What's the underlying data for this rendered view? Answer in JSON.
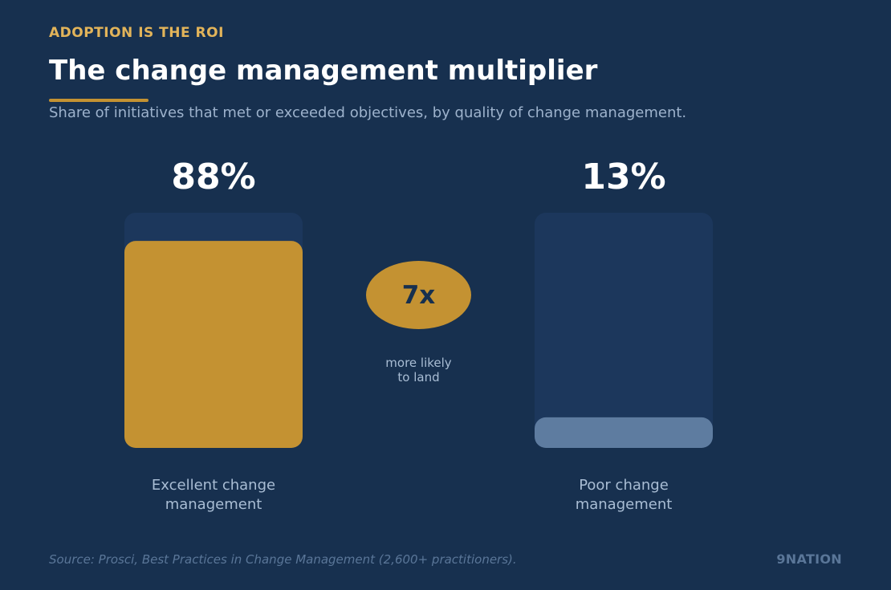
{
  "header": {
    "eyebrow": "ADOPTION IS THE ROI",
    "title": "The change management multiplier",
    "subtitle": "Share of initiatives that met or exceeded objectives, by quality of change management."
  },
  "chart_data": {
    "type": "bar",
    "title": "The change management multiplier",
    "subtitle": "Share of initiatives that met or exceeded objectives, by quality of change management.",
    "categories": [
      "Excellent change\nmanagement",
      "Poor change\nmanagement"
    ],
    "values": [
      88,
      13
    ],
    "value_labels": [
      "88%",
      "13%"
    ],
    "unit": "%",
    "ylim": [
      0,
      100
    ],
    "grid": false,
    "legend": "none",
    "colors": {
      "track": "#1c375c",
      "excellent": "#c49232",
      "poor": "#5e7ca0"
    },
    "annotation": {
      "value": "7x",
      "caption": "more likely\nto land"
    }
  },
  "footer": {
    "source": "Source: Prosci, Best Practices in Change Management (2,600+ practitioners).",
    "brand": "9NATION"
  },
  "colors": {
    "background": "#17304f",
    "accent": "#c49232",
    "eyebrow": "#e2b45a",
    "muted_text": "#a9bdd4"
  }
}
